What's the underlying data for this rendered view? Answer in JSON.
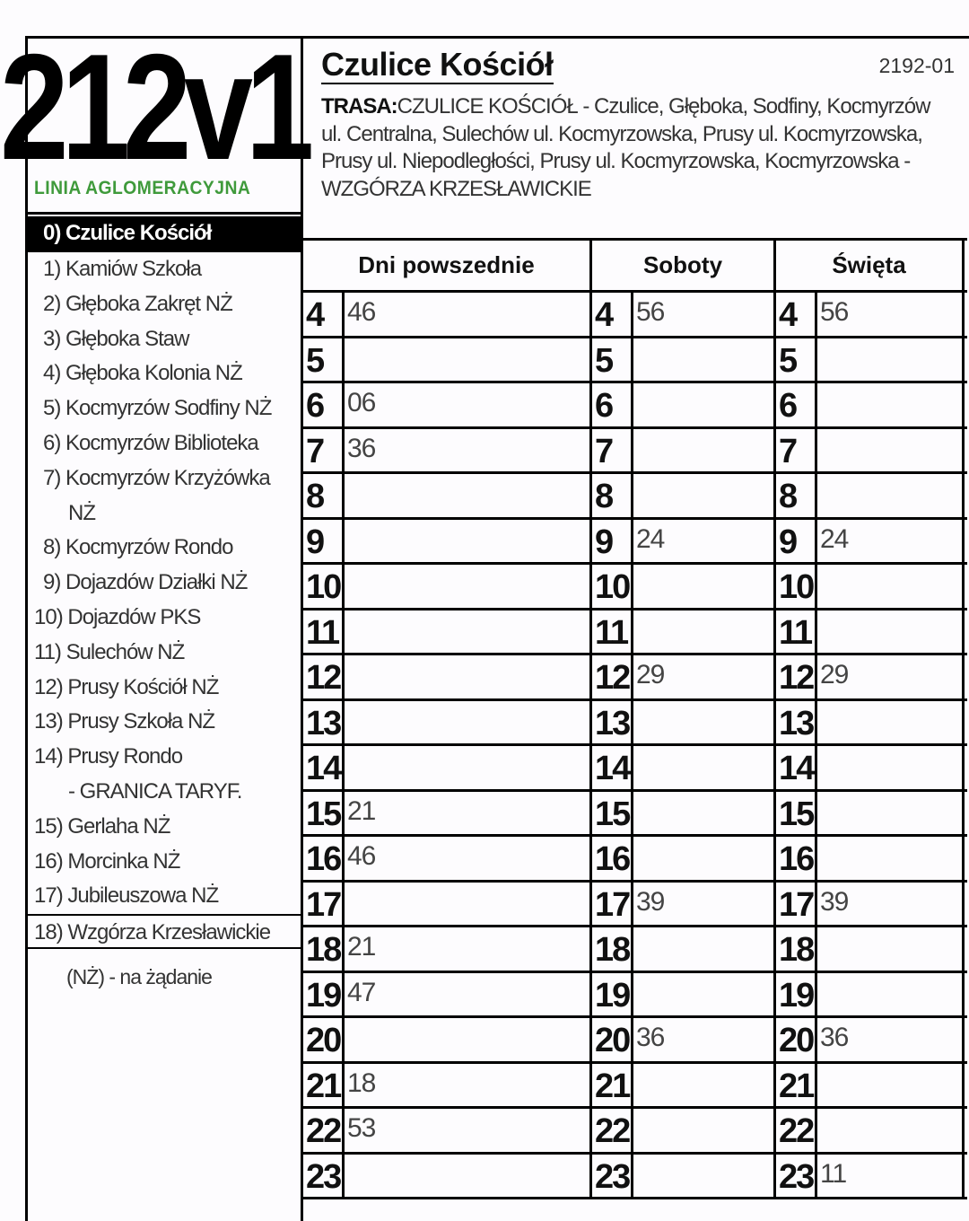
{
  "line": {
    "number": "212v1",
    "type_label": "LINIA AGLOMERACYJNA",
    "type_color": "#3f9a3b"
  },
  "stop": {
    "name": "Czulice Kościół",
    "code": "2192-01"
  },
  "route": {
    "label": "TRASA:",
    "text": "CZULICE KOŚCIÓŁ - Czulice, Głęboka, Sodfiny, Kocmyrzów ul. Centralna, Sulechów ul. Kocmyrzowska, Prusy ul. Kocmyrzowska, Prusy ul. Niepodległości, Prusy ul. Kocmyrzowska, Kocmyrzowska - WZGÓRZA KRZESŁAWICKIE"
  },
  "stops": [
    "0) Czulice Kościół",
    "1) Kamiów Szkoła",
    "2) Głęboka Zakręt NŻ",
    "3) Głęboka Staw",
    "4) Głęboka Kolonia NŻ",
    "5) Kocmyrzów Sodfiny NŻ",
    "6) Kocmyrzów Biblioteka",
    "7) Kocmyrzów Krzyżówka",
    "NŻ",
    "8) Kocmyrzów Rondo",
    "9) Dojazdów Działki NŻ",
    "10) Dojazdów PKS",
    "11) Sulechów NŻ",
    "12) Prusy Kościół NŻ",
    "13) Prusy Szkoła NŻ",
    "14) Prusy Rondo",
    "- GRANICA TARYF.",
    "15) Gerlaha NŻ",
    "16) Morcinka NŻ",
    "17) Jubileuszowa NŻ",
    "18) Wzgórza Krzesławickie"
  ],
  "legend_note": "(NŻ) - na żądanie",
  "timetable": {
    "columns": [
      "Dni powszednie",
      "Soboty",
      "Święta"
    ],
    "rows": [
      {
        "hour": "4",
        "weekday": "46",
        "saturday": "56",
        "holiday": "56"
      },
      {
        "hour": "5",
        "weekday": "",
        "saturday": "",
        "holiday": ""
      },
      {
        "hour": "6",
        "weekday": "06",
        "saturday": "",
        "holiday": ""
      },
      {
        "hour": "7",
        "weekday": "36",
        "saturday": "",
        "holiday": ""
      },
      {
        "hour": "8",
        "weekday": "",
        "saturday": "",
        "holiday": ""
      },
      {
        "hour": "9",
        "weekday": "",
        "saturday": "24",
        "holiday": "24"
      },
      {
        "hour": "10",
        "weekday": "",
        "saturday": "",
        "holiday": ""
      },
      {
        "hour": "11",
        "weekday": "",
        "saturday": "",
        "holiday": ""
      },
      {
        "hour": "12",
        "weekday": "",
        "saturday": "29",
        "holiday": "29"
      },
      {
        "hour": "13",
        "weekday": "",
        "saturday": "",
        "holiday": ""
      },
      {
        "hour": "14",
        "weekday": "",
        "saturday": "",
        "holiday": ""
      },
      {
        "hour": "15",
        "weekday": "21",
        "saturday": "",
        "holiday": ""
      },
      {
        "hour": "16",
        "weekday": "46",
        "saturday": "",
        "holiday": ""
      },
      {
        "hour": "17",
        "weekday": "",
        "saturday": "39",
        "holiday": "39"
      },
      {
        "hour": "18",
        "weekday": "21",
        "saturday": "",
        "holiday": ""
      },
      {
        "hour": "19",
        "weekday": "47",
        "saturday": "",
        "holiday": ""
      },
      {
        "hour": "20",
        "weekday": "",
        "saturday": "36",
        "holiday": "36"
      },
      {
        "hour": "21",
        "weekday": "18",
        "saturday": "",
        "holiday": ""
      },
      {
        "hour": "22",
        "weekday": "53",
        "saturday": "",
        "holiday": ""
      },
      {
        "hour": "23",
        "weekday": "",
        "saturday": "",
        "holiday": "11"
      }
    ]
  }
}
